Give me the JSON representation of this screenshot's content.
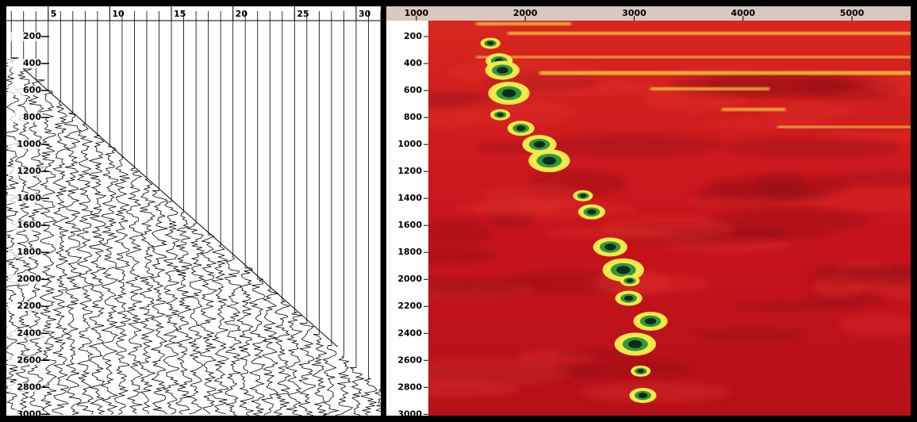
{
  "chart_data": [
    {
      "type": "wiggle",
      "xlim": [
        1.6,
        32
      ],
      "ylim": [
        82,
        3010
      ],
      "xticks": [
        5,
        10,
        15,
        20,
        25,
        30
      ],
      "yticks": [
        200,
        400,
        600,
        800,
        1000,
        1200,
        1400,
        1600,
        1800,
        2000,
        2200,
        2400,
        2600,
        2800,
        3000
      ]
    },
    {
      "type": "heatmap",
      "xlim": [
        724,
        5590
      ],
      "ylim": [
        82,
        3010
      ],
      "xticks": [
        1000,
        2000,
        3000,
        4000,
        5000
      ],
      "yticks": [
        200,
        400,
        600,
        800,
        1000,
        1200,
        1400,
        1600,
        1800,
        2000,
        2200,
        2400,
        2600,
        2800,
        3000
      ]
    }
  ]
}
